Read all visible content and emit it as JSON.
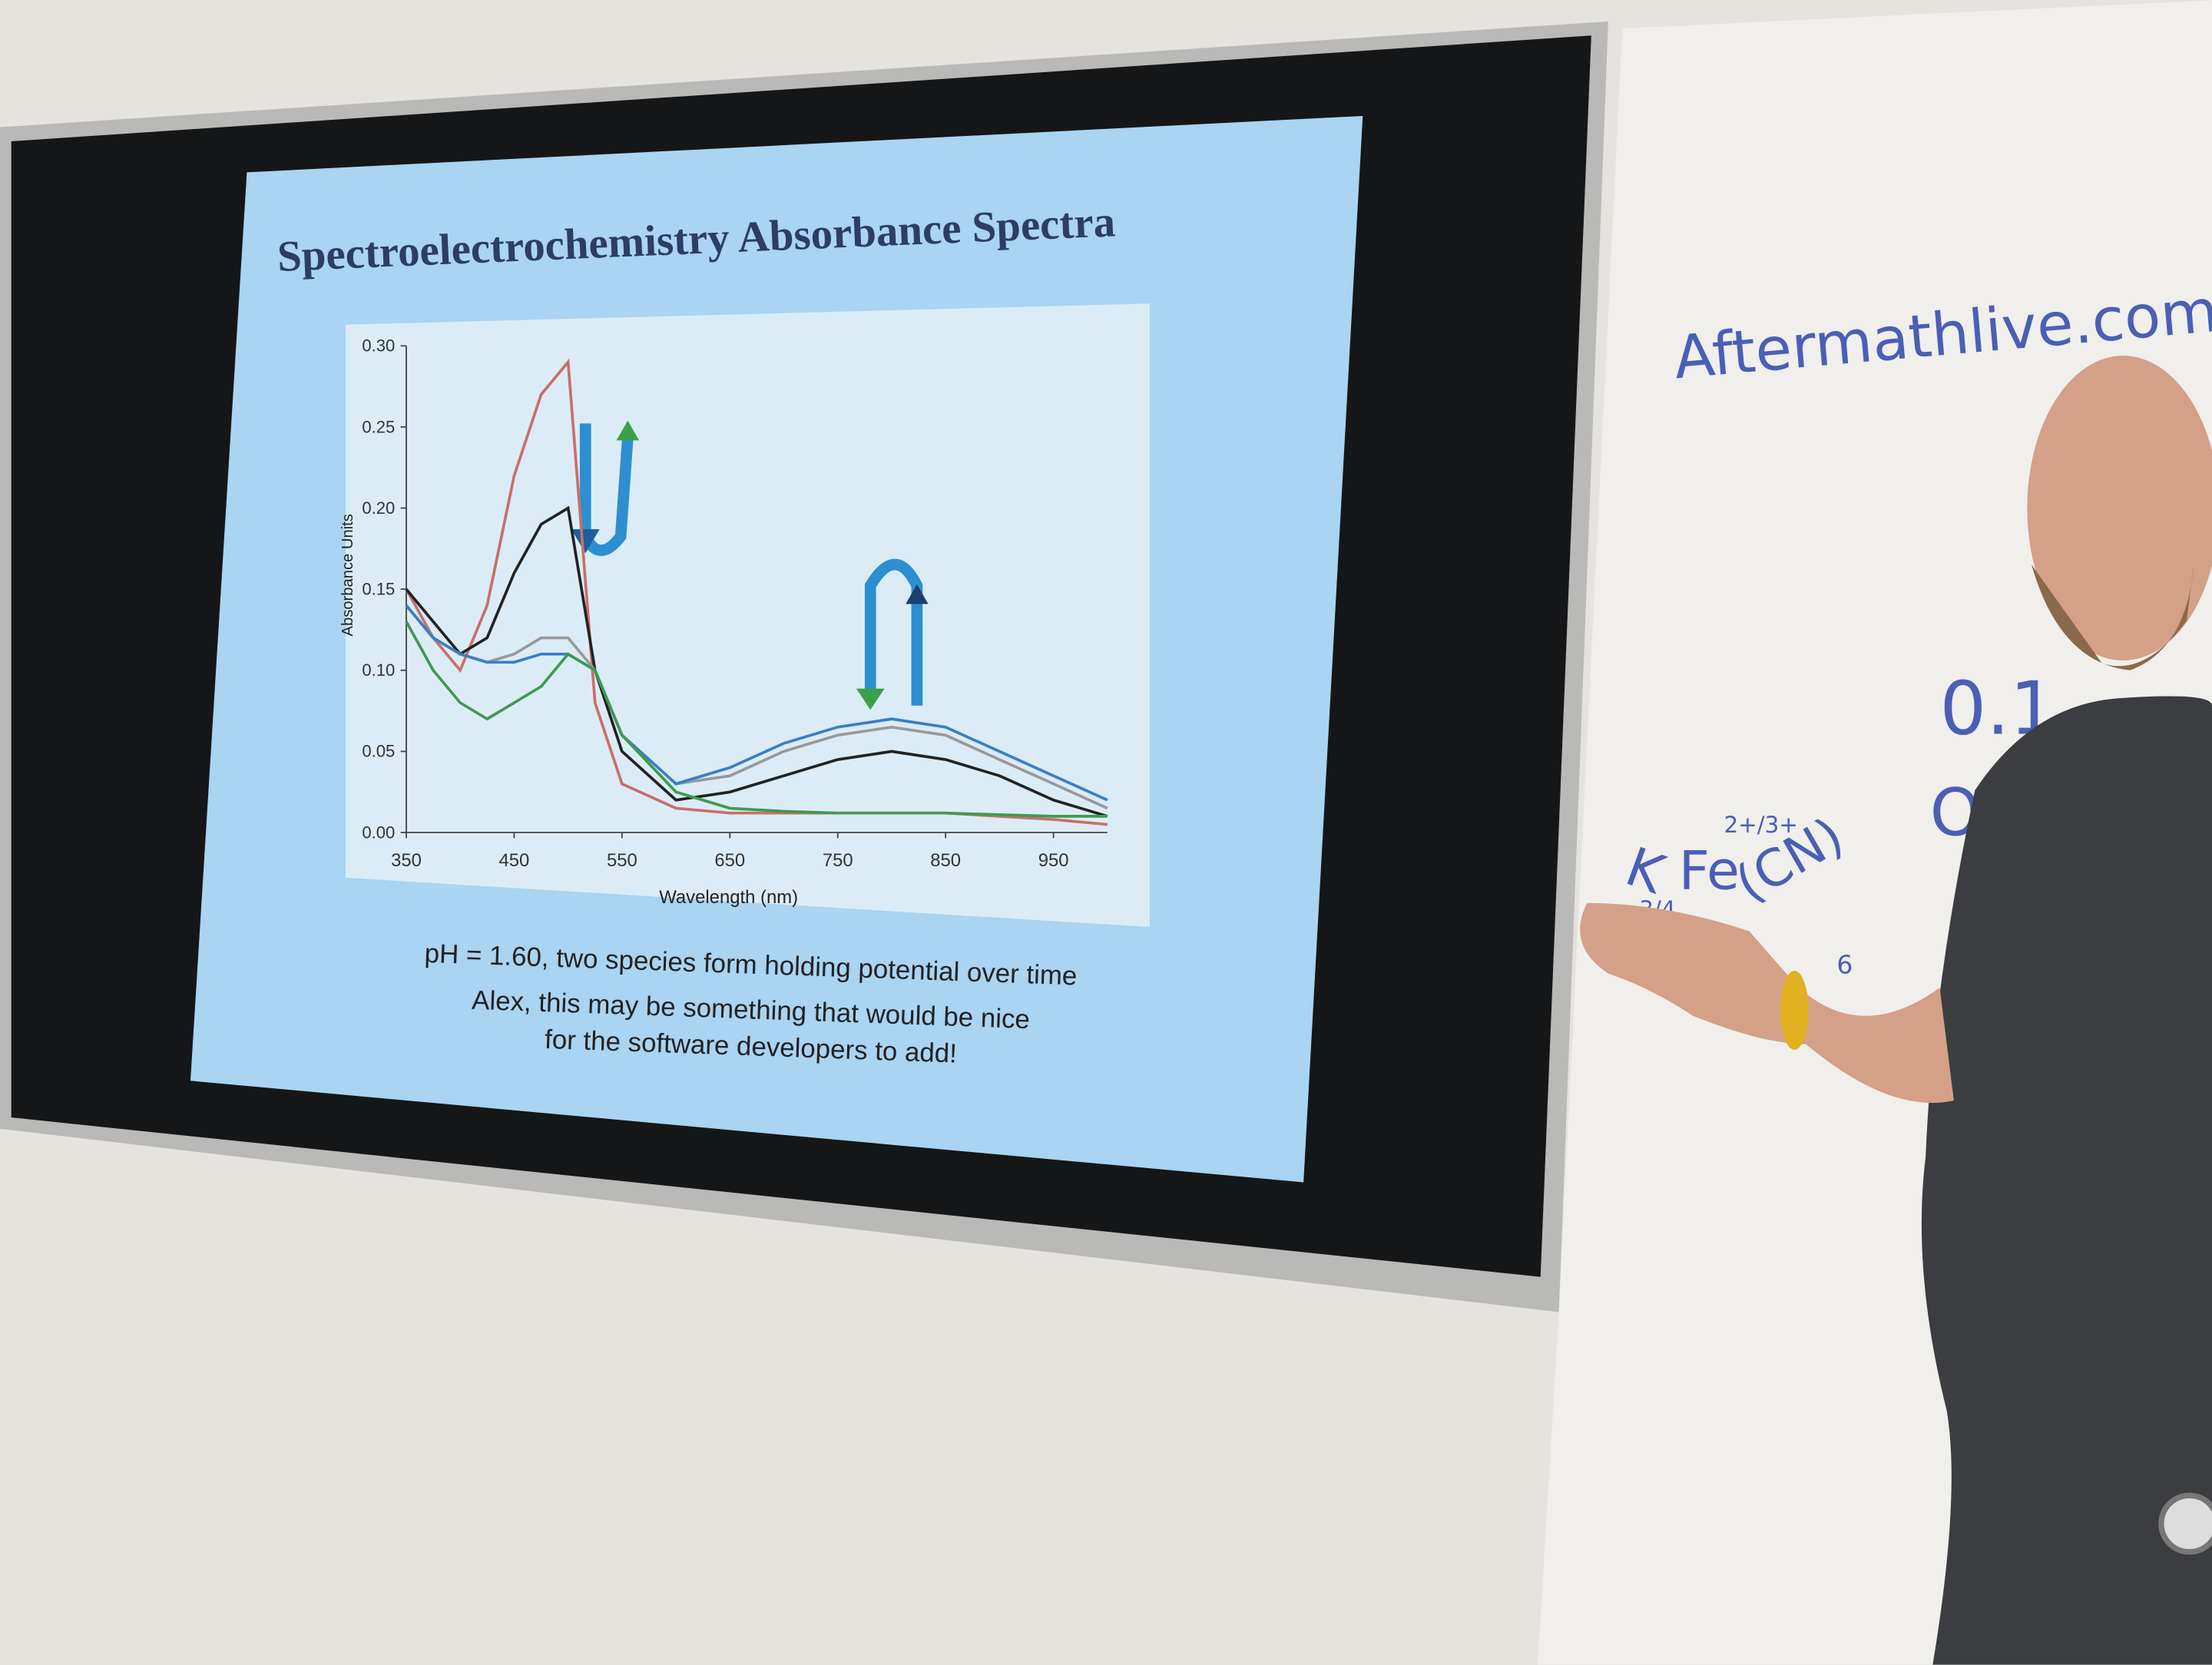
{
  "slide": {
    "title": "Spectroelectrochemistry Absorbance Spectra",
    "caption": [
      "pH = 1.60, two species form holding potential over time",
      "Alex, this may be something that would be nice",
      "for the software developers to add!"
    ]
  },
  "chart_data": {
    "type": "line",
    "x_label": "Wavelength (nm)",
    "y_label": "Absorbance Units",
    "x": [
      350,
      375,
      400,
      425,
      450,
      475,
      500,
      525,
      550,
      600,
      650,
      700,
      750,
      800,
      850,
      900,
      950,
      1000
    ],
    "xlim": [
      350,
      1000
    ],
    "xticks": [
      350,
      450,
      550,
      650,
      750,
      850,
      950
    ],
    "ylim": [
      0,
      0.3
    ],
    "yticks": [
      {
        "value": 0,
        "label": "0.00"
      },
      0.05,
      {
        "value": 0.1,
        "label": "0.10"
      },
      0.15,
      {
        "value": 0.2,
        "label": "0.20"
      },
      0.25,
      {
        "value": 0.3,
        "label": "0.30"
      }
    ],
    "series": [
      {
        "color": "#c8706a",
        "values": [
          0.15,
          0.12,
          0.1,
          0.14,
          0.22,
          0.27,
          0.29,
          0.08,
          0.03,
          0.015,
          0.012,
          0.012,
          0.012,
          0.012,
          0.012,
          0.01,
          0.008,
          0.005
        ]
      },
      {
        "color": "#222222",
        "values": [
          0.15,
          0.13,
          0.11,
          0.12,
          0.16,
          0.19,
          0.2,
          0.1,
          0.05,
          0.02,
          0.025,
          0.035,
          0.045,
          0.05,
          0.045,
          0.035,
          0.02,
          0.01
        ]
      },
      {
        "color": "#999999",
        "values": [
          0.14,
          0.12,
          0.11,
          0.105,
          0.11,
          0.12,
          0.12,
          0.1,
          0.06,
          0.03,
          0.035,
          0.05,
          0.06,
          0.065,
          0.06,
          0.045,
          0.03,
          0.015
        ]
      },
      {
        "color": "#3a7fc4",
        "values": [
          0.14,
          0.12,
          0.11,
          0.105,
          0.105,
          0.11,
          0.11,
          0.1,
          0.06,
          0.03,
          0.04,
          0.055,
          0.065,
          0.07,
          0.065,
          0.05,
          0.035,
          0.02
        ]
      },
      {
        "color": "#3f9a4f",
        "values": [
          0.13,
          0.1,
          0.08,
          0.07,
          0.08,
          0.09,
          0.11,
          0.1,
          0.06,
          0.025,
          0.015,
          0.013,
          0.012,
          0.012,
          0.012,
          0.011,
          0.01,
          0.01
        ]
      }
    ]
  },
  "whiteboard": {
    "url": "Aftermathlive.com/w",
    "number": "0.1",
    "letter": "O",
    "k": "K",
    "k_sub": "3/4",
    "fe": "Fe",
    "fe_sup": "2+/3+",
    "cn": "(CN)",
    "cn_sub": "6"
  }
}
